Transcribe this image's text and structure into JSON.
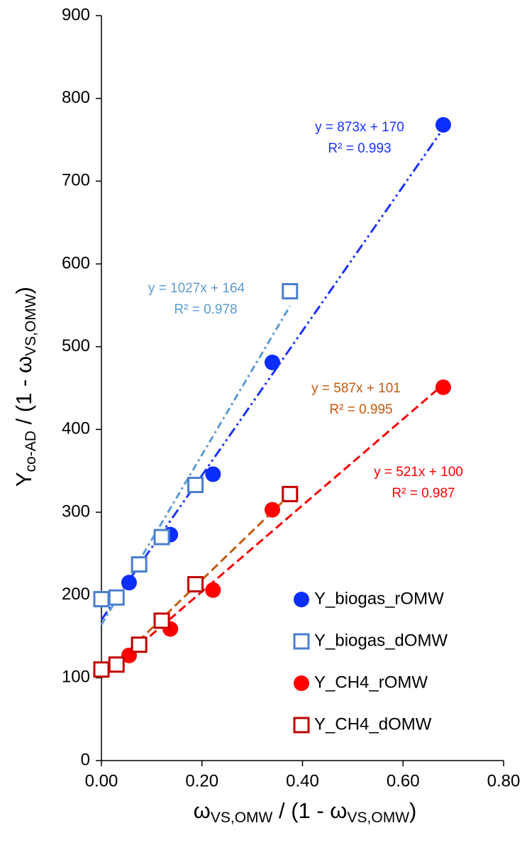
{
  "chart_data": {
    "type": "scatter",
    "xlabel_parts": [
      "ω",
      "VS,OMW",
      " / (1 - ω",
      "VS,OMW",
      ")"
    ],
    "ylabel_parts": [
      "Y",
      "co-AD",
      " / (1 - ω",
      "VS,OMW",
      ")"
    ],
    "xlim": [
      0,
      0.8
    ],
    "ylim": [
      0,
      900
    ],
    "xticks": [
      {
        "value": 0,
        "label": "0.00"
      },
      {
        "value": 0.2,
        "label": "0.20"
      },
      {
        "value": 0.4,
        "label": "0.40"
      },
      {
        "value": 0.6,
        "label": "0.60"
      },
      {
        "value": 0.8,
        "label": "0.80"
      }
    ],
    "yticks": [
      0,
      100,
      200,
      300,
      400,
      500,
      600,
      700,
      800,
      900
    ],
    "grid": false,
    "legend": "lower right",
    "series": [
      {
        "name": "Y_biogas_rOMW",
        "color": "#0a2eff",
        "marker": "circle",
        "x": [
          0,
          0.055,
          0.137,
          0.222,
          0.34,
          0.68
        ],
        "values": [
          195,
          215,
          273,
          346,
          481,
          768
        ]
      },
      {
        "name": "Y_biogas_dOMW",
        "color": "#4a7fcf",
        "marker": "square",
        "x": [
          0,
          0.03,
          0.075,
          0.12,
          0.187,
          0.375
        ],
        "values": [
          195,
          197,
          237,
          270,
          333,
          567
        ]
      },
      {
        "name": "Y_CH4_rOMW",
        "color": "#ff0000",
        "marker": "circle",
        "x": [
          0,
          0.055,
          0.137,
          0.222,
          0.34,
          0.68
        ],
        "values": [
          110,
          127,
          159,
          206,
          303,
          451
        ]
      },
      {
        "name": "Y_CH4_dOMW",
        "color": "#c00000",
        "marker": "square",
        "x": [
          0,
          0.03,
          0.075,
          0.12,
          0.187,
          0.375
        ],
        "values": [
          110,
          116,
          140,
          169,
          213,
          322
        ]
      }
    ],
    "trendlines": [
      {
        "series": 0,
        "slope": 873,
        "intercept": 170,
        "equation": "y = 873x + 170",
        "r2": "R² = 0.993",
        "color": "#1a33ff"
      },
      {
        "series": 1,
        "slope": 1027,
        "intercept": 164,
        "equation": "y = 1027x + 164",
        "r2": "R² = 0.978",
        "color": "#5b9bd5"
      },
      {
        "series": 3,
        "slope": 587,
        "intercept": 101,
        "equation": "y = 587x + 101",
        "r2": "R² = 0.995",
        "color": "#c55a11"
      },
      {
        "series": 2,
        "slope": 521,
        "intercept": 100,
        "equation": "y = 521x + 100",
        "r2": "R² = 0.987",
        "color": "#ff0000"
      }
    ]
  }
}
